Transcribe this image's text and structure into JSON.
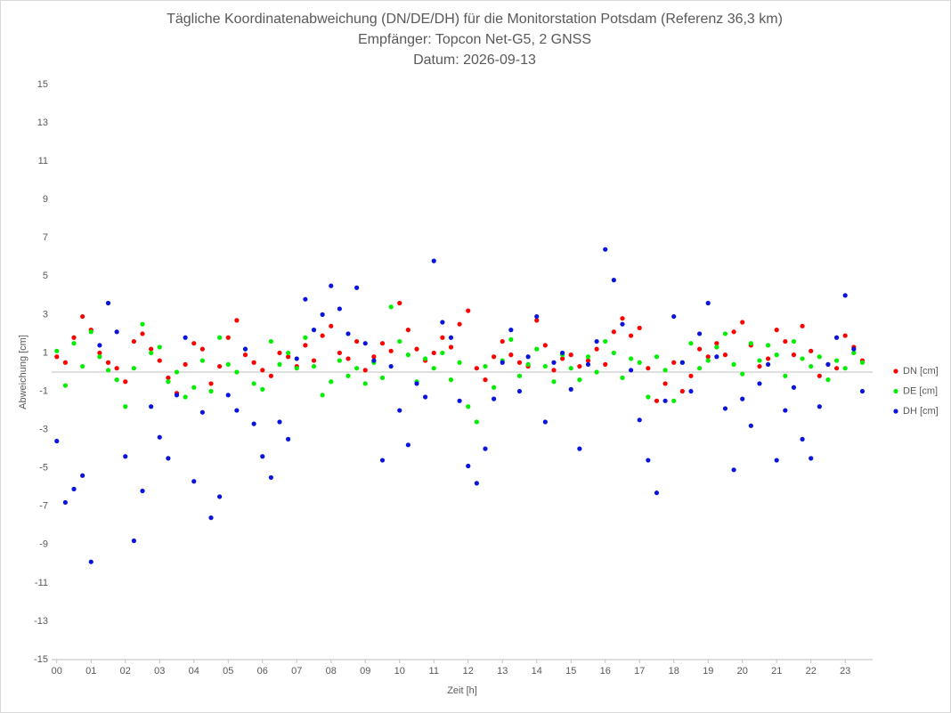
{
  "chart_data": {
    "type": "scatter",
    "title": "Tägliche Koordinatenabweichung (DN/DE/DH) für die Monitorstation Potsdam (Referenz 36,3 km)",
    "subtitle": [
      "Empfänger: Topcon Net-G5, 2 GNSS",
      "Datum: 2026-09-13"
    ],
    "xlabel": "Zeit [h]",
    "ylabel": "Abweichung [cm]",
    "legend": "right",
    "xlim": [
      -0.15,
      23.8
    ],
    "ylim": [
      -15,
      15
    ],
    "xticks": [
      {
        "value": 0,
        "label": "00"
      },
      {
        "value": 1,
        "label": "01"
      },
      {
        "value": 2,
        "label": "02"
      },
      {
        "value": 3,
        "label": "03"
      },
      {
        "value": 4,
        "label": "04"
      },
      {
        "value": 5,
        "label": "05"
      },
      {
        "value": 6,
        "label": "06"
      },
      {
        "value": 7,
        "label": "07"
      },
      {
        "value": 8,
        "label": "08"
      },
      {
        "value": 9,
        "label": "09"
      },
      10,
      11,
      12,
      13,
      14,
      15,
      16,
      17,
      18,
      19,
      20,
      21,
      22,
      23
    ],
    "yticks": [
      15,
      13,
      11,
      9,
      7,
      5,
      3,
      1,
      -1,
      -3,
      -5,
      -7,
      -9,
      -11,
      -13,
      -15
    ],
    "x": [
      0,
      0.25,
      0.5,
      0.75,
      1,
      1.25,
      1.5,
      1.75,
      2,
      2.25,
      2.5,
      2.75,
      3,
      3.25,
      3.5,
      3.75,
      4,
      4.25,
      4.5,
      4.75,
      5,
      5.25,
      5.5,
      5.75,
      6,
      6.25,
      6.5,
      6.75,
      7,
      7.25,
      7.5,
      7.75,
      8,
      8.25,
      8.5,
      8.75,
      9,
      9.25,
      9.5,
      9.75,
      10,
      10.25,
      10.5,
      10.75,
      11,
      11.25,
      11.5,
      11.75,
      12,
      12.25,
      12.5,
      12.75,
      13,
      13.25,
      13.5,
      13.75,
      14,
      14.25,
      14.5,
      14.75,
      15,
      15.25,
      15.5,
      15.75,
      16,
      16.25,
      16.5,
      16.75,
      17,
      17.25,
      17.5,
      17.75,
      18,
      18.25,
      18.5,
      18.75,
      19,
      19.25,
      19.5,
      19.75,
      20,
      20.25,
      20.5,
      20.75,
      21,
      21.25,
      21.5,
      21.75,
      22,
      22.25,
      22.5,
      22.75,
      23,
      23.25,
      23.5
    ],
    "series": [
      {
        "name": "DN [cm]",
        "color": "#ff0000",
        "values": [
          0.8,
          0.5,
          1.8,
          2.9,
          2.2,
          1.0,
          0.5,
          0.2,
          -0.5,
          1.6,
          2.0,
          1.2,
          0.6,
          -0.3,
          -1.1,
          0.4,
          1.5,
          1.2,
          -0.6,
          0.3,
          1.8,
          2.7,
          0.9,
          0.5,
          0.1,
          -0.2,
          1.0,
          0.8,
          0.3,
          1.4,
          0.6,
          1.9,
          2.4,
          1.0,
          0.7,
          1.6,
          0.1,
          0.8,
          1.5,
          1.1,
          3.6,
          2.2,
          1.2,
          0.6,
          1.0,
          1.8,
          1.3,
          2.5,
          3.2,
          0.2,
          -0.4,
          0.8,
          1.6,
          0.9,
          0.5,
          0.3,
          2.7,
          1.4,
          0.1,
          0.7,
          0.9,
          0.3,
          0.6,
          1.2,
          0.4,
          2.1,
          2.8,
          1.9,
          2.3,
          0.2,
          -1.5,
          -0.6,
          0.5,
          -1.0,
          -0.2,
          1.2,
          0.8,
          1.5,
          0.9,
          2.1,
          2.6,
          1.4,
          0.3,
          0.7,
          2.2,
          1.6,
          0.9,
          2.4,
          1.1,
          -0.2,
          0.4,
          0.2,
          1.9,
          1.3,
          0.6
        ]
      },
      {
        "name": "DE [cm]",
        "color": "#00ee00",
        "values": [
          1.1,
          -0.7,
          1.5,
          0.3,
          2.1,
          0.8,
          0.1,
          -0.4,
          -1.8,
          0.2,
          2.5,
          1.0,
          1.3,
          -0.5,
          0.0,
          -1.3,
          -0.8,
          0.6,
          -1.0,
          1.8,
          0.4,
          0.0,
          1.2,
          -0.6,
          -0.9,
          1.6,
          0.4,
          1.0,
          0.2,
          1.8,
          0.3,
          -1.2,
          -0.5,
          0.6,
          -0.2,
          0.2,
          -0.6,
          0.5,
          -0.3,
          3.4,
          1.6,
          0.9,
          -0.5,
          0.7,
          0.2,
          1.0,
          -0.4,
          0.5,
          -1.8,
          -2.6,
          0.3,
          -0.8,
          0.6,
          1.7,
          -0.2,
          0.4,
          1.2,
          0.3,
          -0.5,
          0.9,
          0.2,
          -0.4,
          0.8,
          0.0,
          1.6,
          1.0,
          -0.3,
          0.7,
          0.5,
          -1.3,
          0.8,
          0.1,
          -1.5,
          0.5,
          1.5,
          0.2,
          0.6,
          1.3,
          2.0,
          0.4,
          -0.1,
          1.5,
          0.6,
          1.4,
          0.9,
          -0.2,
          1.6,
          0.7,
          0.3,
          0.8,
          -0.4,
          0.6,
          0.2,
          1.0,
          0.5
        ]
      },
      {
        "name": "DH [cm]",
        "color": "#0a14dc",
        "values": [
          -3.6,
          -6.8,
          -6.1,
          -5.4,
          -9.9,
          1.4,
          3.6,
          2.1,
          -4.4,
          -8.8,
          -6.2,
          -1.8,
          -3.4,
          -4.5,
          -1.2,
          1.8,
          -5.7,
          -2.1,
          -7.6,
          -6.5,
          -1.2,
          -2.0,
          1.2,
          -2.7,
          -4.4,
          -5.5,
          -2.6,
          -3.5,
          0.7,
          3.8,
          2.2,
          3.0,
          4.5,
          3.3,
          2.0,
          4.4,
          1.5,
          0.6,
          -4.6,
          0.3,
          -2.0,
          -3.8,
          -0.6,
          -1.3,
          5.8,
          2.6,
          1.8,
          -1.5,
          -4.9,
          -5.8,
          -4.0,
          -1.4,
          0.5,
          2.2,
          -1.0,
          0.8,
          2.9,
          -2.6,
          0.5,
          1.0,
          -0.9,
          -4.0,
          0.4,
          1.6,
          6.4,
          4.8,
          2.5,
          0.1,
          -2.5,
          -4.6,
          -6.3,
          -1.5,
          2.9,
          0.5,
          -1.0,
          2.0,
          3.6,
          0.8,
          -1.9,
          -5.1,
          -1.4,
          -2.8,
          -0.6,
          0.4,
          -4.6,
          -2.0,
          -0.8,
          -3.5,
          -4.5,
          -1.8,
          0.4,
          1.8,
          4.0,
          1.2,
          -1.0
        ]
      }
    ]
  }
}
